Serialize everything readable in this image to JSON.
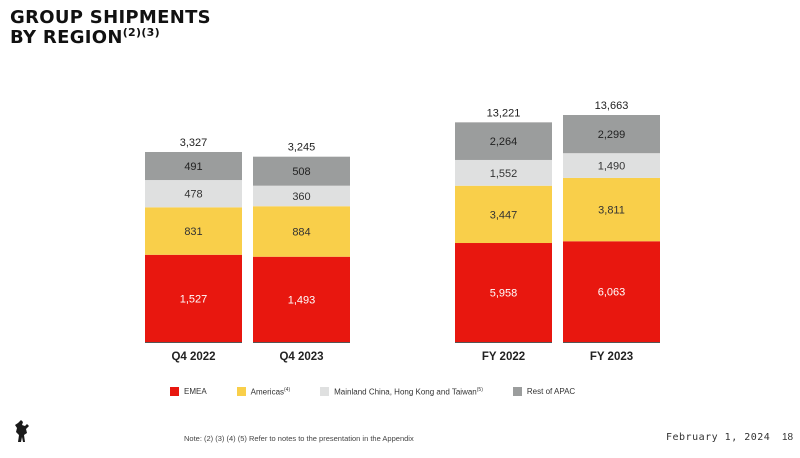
{
  "title": {
    "line1": "GROUP SHIPMENTS",
    "line2": "BY REGION",
    "superscript": "(2)(3)"
  },
  "chart_data": {
    "type": "bar",
    "stacked": true,
    "categories": [
      "Q4 2022",
      "Q4 2023",
      "FY 2022",
      "FY 2023"
    ],
    "series": [
      {
        "name": "EMEA",
        "color": "#e8170f",
        "values": [
          1527,
          1493,
          5958,
          6063
        ]
      },
      {
        "name": "Americas",
        "color": "#f9cf4a",
        "values": [
          831,
          884,
          3447,
          3811
        ]
      },
      {
        "name": "Mainland China, Hong Kong and Taiwan",
        "color": "#dfe0e0",
        "values": [
          478,
          360,
          1552,
          1490
        ]
      },
      {
        "name": "Rest of APAC",
        "color": "#9b9d9d",
        "values": [
          491,
          508,
          2264,
          2299
        ]
      }
    ],
    "totals": [
      "3,327",
      "3,245",
      "13,221",
      "13,663"
    ],
    "value_labels": [
      [
        "1,527",
        "1,493",
        "5,958",
        "6,063"
      ],
      [
        "831",
        "884",
        "3,447",
        "3,811"
      ],
      [
        "478",
        "360",
        "1,552",
        "1,490"
      ],
      [
        "491",
        "508",
        "2,264",
        "2,299"
      ]
    ],
    "legend_placement": "bottom"
  },
  "legend": [
    {
      "label": "EMEA",
      "sup": "",
      "color": "#e8170f"
    },
    {
      "label": "Americas",
      "sup": "(4)",
      "color": "#f9cf4a"
    },
    {
      "label": "Mainland China, Hong Kong and Taiwan",
      "sup": "(5)",
      "color": "#dfe0e0"
    },
    {
      "label": "Rest of APAC",
      "sup": "",
      "color": "#9b9d9d"
    }
  ],
  "footer": {
    "note": "Note: (2) (3) (4) (5) Refer to notes to the presentation in the Appendix",
    "date": "February 1, 2024",
    "page": "18"
  },
  "logo": {
    "icon": "prancing-horse-icon"
  }
}
